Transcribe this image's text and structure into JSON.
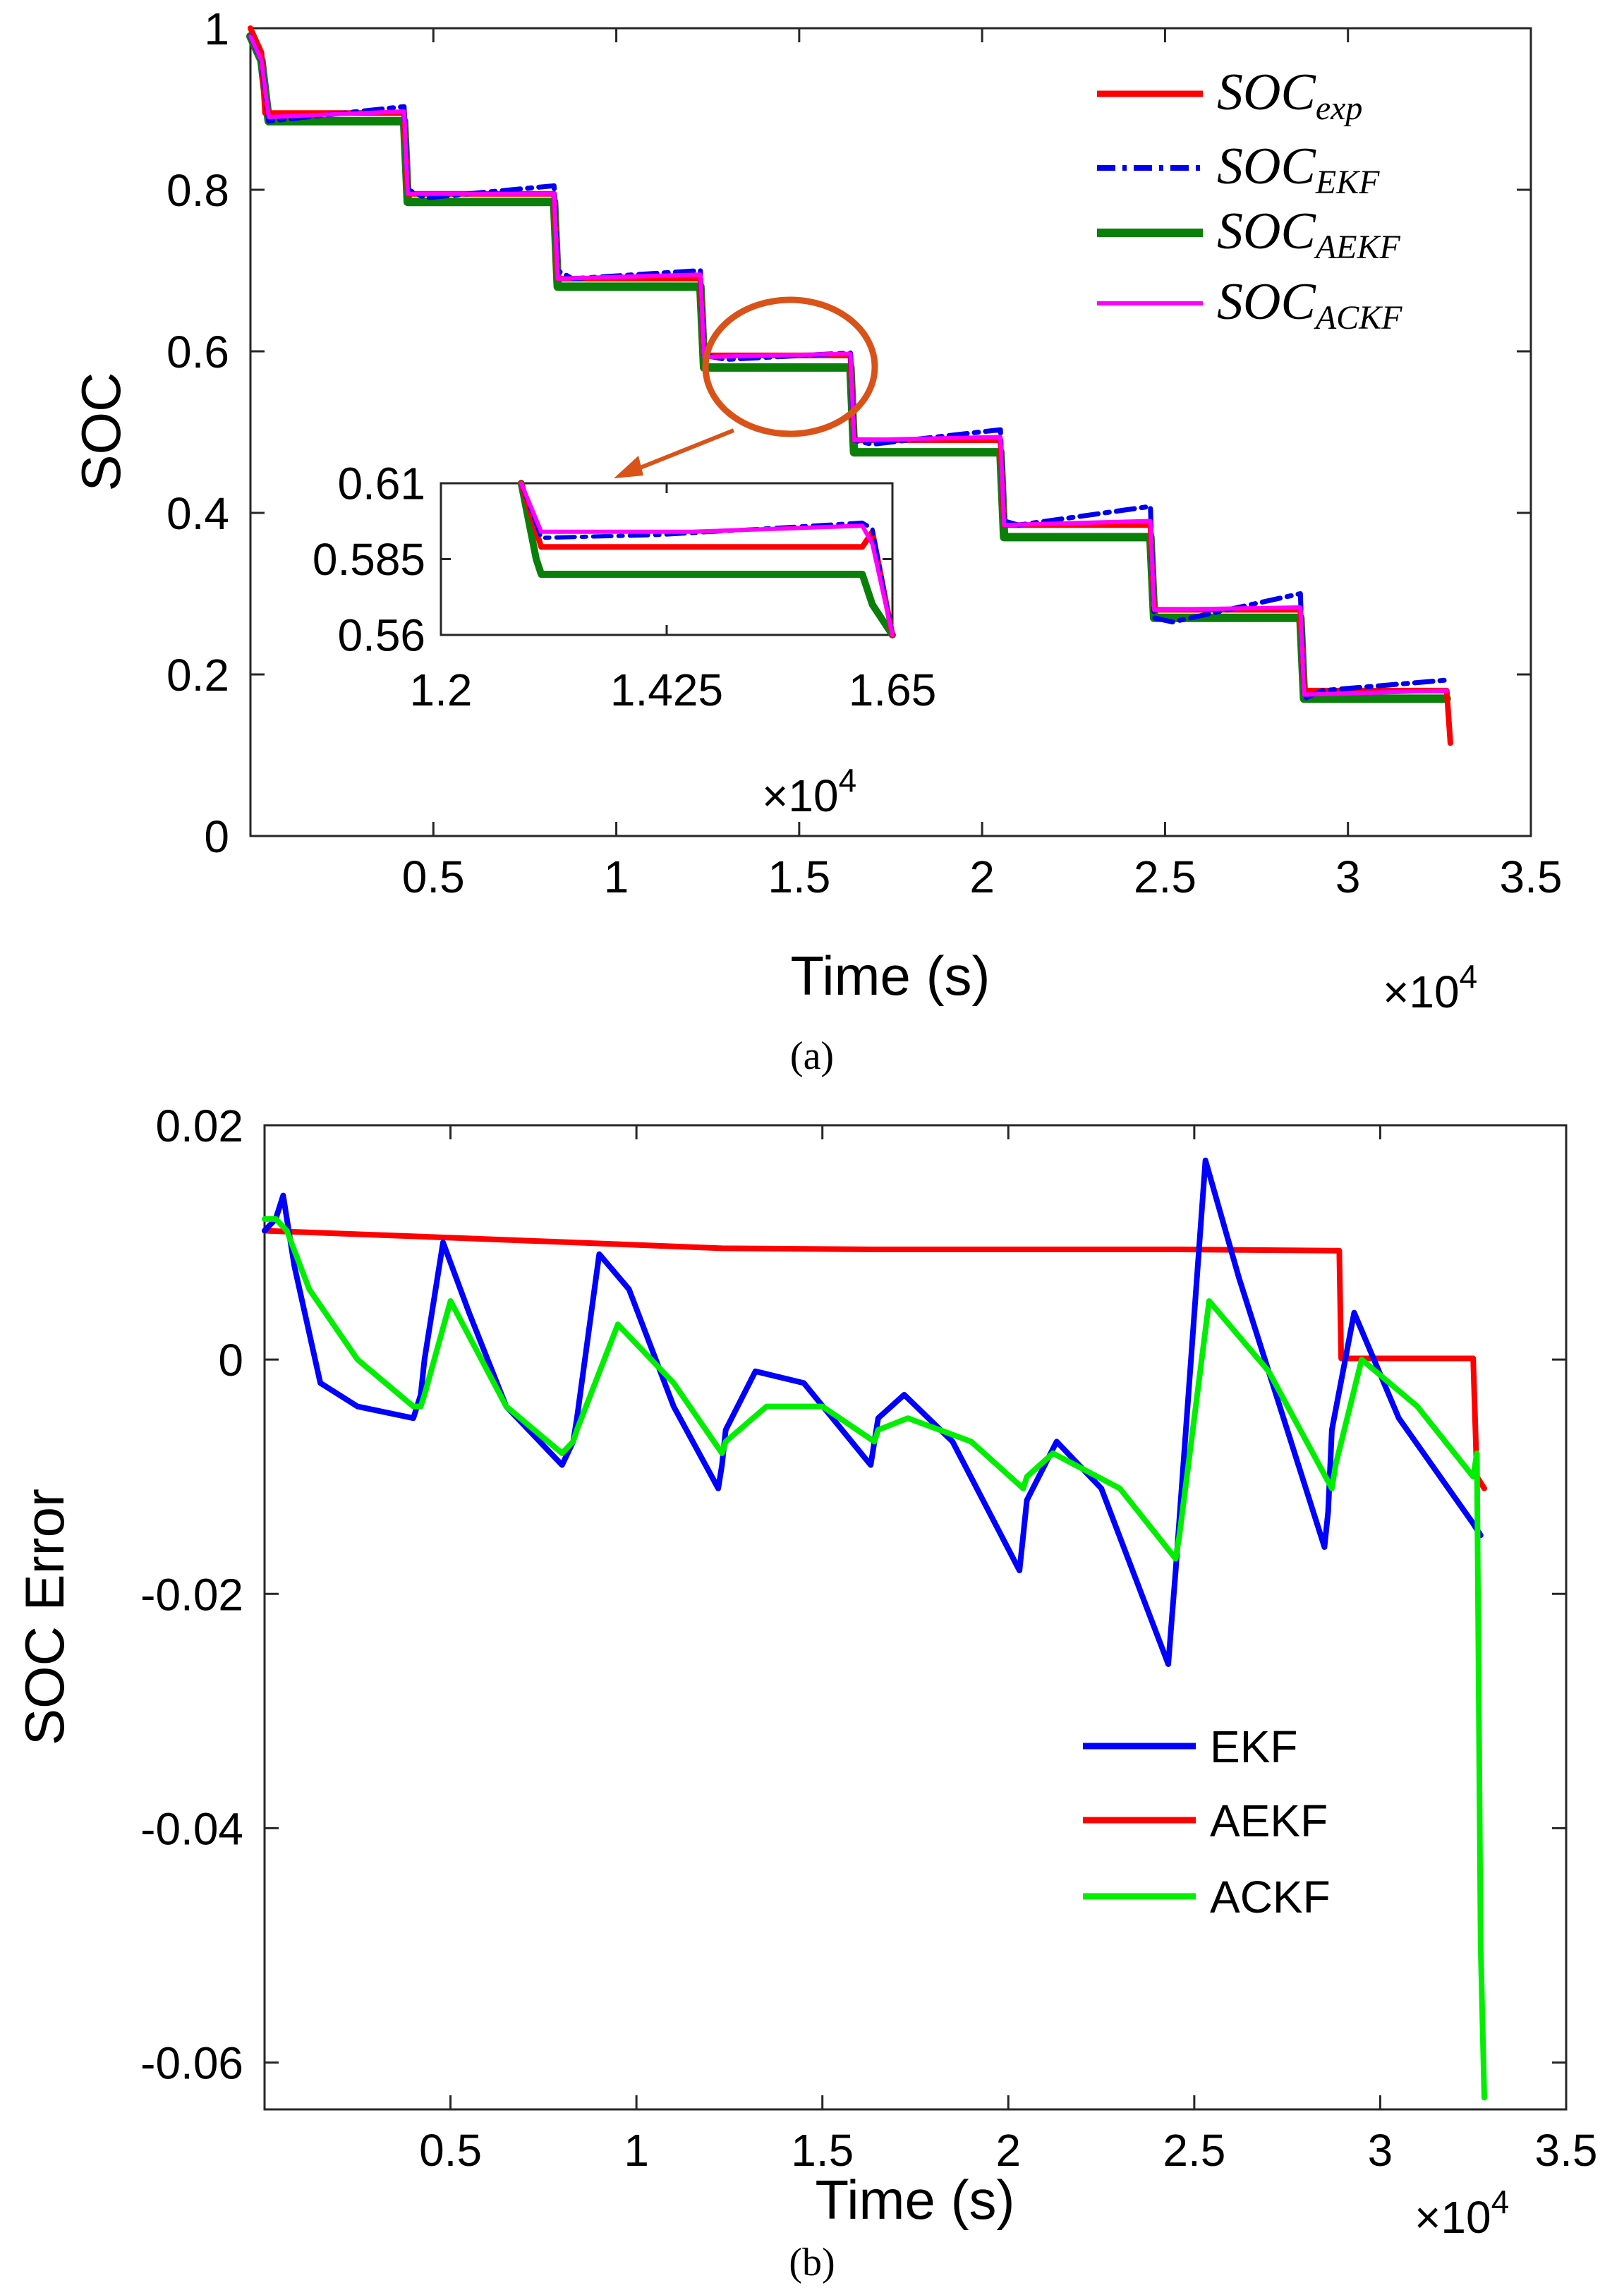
{
  "chart_data": [
    {
      "type": "line",
      "caption": "(a)",
      "xlabel": "Time (s)",
      "ylabel": "SOC",
      "x_multiplier": "×10",
      "x_multiplier_exp": "4",
      "xlim": [
        0,
        35000
      ],
      "ylim": [
        0,
        1
      ],
      "xticks": [
        5000,
        10000,
        15000,
        20000,
        25000,
        30000,
        35000
      ],
      "xtick_labels": [
        "0.5",
        "1",
        "1.5",
        "2",
        "2.5",
        "3",
        "3.5"
      ],
      "yticks": [
        0,
        0.2,
        0.4,
        0.6,
        0.8,
        1
      ],
      "ytick_labels": [
        "0",
        "0.2",
        "0.4",
        "0.6",
        "0.8",
        "1"
      ],
      "legend_position": "top-right",
      "legend": [
        {
          "base": "SOC",
          "sub": "exp"
        },
        {
          "base": "SOC",
          "sub": "EKF"
        },
        {
          "base": "SOC",
          "sub": "AEKF"
        },
        {
          "base": "SOC",
          "sub": "ACKF"
        }
      ],
      "series": [
        {
          "name": "SOC_exp",
          "color": "#ff0000",
          "style": "solid",
          "x": [
            0,
            300,
            400,
            4200,
            4300,
            8300,
            8400,
            12300,
            12400,
            16400,
            16500,
            20500,
            20600,
            24600,
            24700,
            28700,
            28800,
            32700,
            32800
          ],
          "y": [
            1.0,
            0.97,
            0.895,
            0.895,
            0.795,
            0.795,
            0.69,
            0.69,
            0.595,
            0.595,
            0.49,
            0.49,
            0.385,
            0.385,
            0.28,
            0.28,
            0.18,
            0.18,
            0.115
          ]
        },
        {
          "name": "SOC_EKF",
          "color": "#0000ee",
          "style": "dashdot",
          "x": [
            0,
            300,
            500,
            4200,
            4300,
            4800,
            8300,
            8400,
            8800,
            12300,
            12400,
            13000,
            16400,
            16500,
            17000,
            20500,
            20600,
            21000,
            24600,
            24700,
            25200,
            28700,
            28800,
            29300,
            32700
          ],
          "y": [
            0.99,
            0.96,
            0.885,
            0.903,
            0.8,
            0.79,
            0.805,
            0.7,
            0.69,
            0.7,
            0.595,
            0.59,
            0.598,
            0.49,
            0.485,
            0.503,
            0.39,
            0.385,
            0.408,
            0.27,
            0.265,
            0.3,
            0.17,
            0.18,
            0.193
          ]
        },
        {
          "name": "SOC_AEKF",
          "color": "#0a7f0a",
          "style": "solid-thick",
          "x": [
            0,
            300,
            500,
            4200,
            4300,
            8300,
            8400,
            12300,
            12400,
            16400,
            16500,
            20500,
            20600,
            24600,
            24700,
            28700,
            28800,
            32700
          ],
          "y": [
            0.99,
            0.96,
            0.885,
            0.885,
            0.785,
            0.785,
            0.68,
            0.68,
            0.58,
            0.58,
            0.475,
            0.475,
            0.37,
            0.37,
            0.27,
            0.27,
            0.17,
            0.17
          ]
        },
        {
          "name": "SOC_ACKF",
          "color": "#ff00ff",
          "style": "solid",
          "x": [
            0,
            300,
            500,
            4200,
            4300,
            8300,
            8400,
            12300,
            12400,
            16400,
            16500,
            20500,
            20600,
            24600,
            24700,
            28700,
            28800,
            32700
          ],
          "y": [
            0.99,
            0.96,
            0.89,
            0.897,
            0.795,
            0.795,
            0.69,
            0.695,
            0.593,
            0.597,
            0.49,
            0.494,
            0.385,
            0.39,
            0.28,
            0.283,
            0.175,
            0.18
          ]
        }
      ],
      "inset": {
        "xlim": [
          12000,
          16500
        ],
        "ylim": [
          0.56,
          0.61
        ],
        "xticks": [
          12000,
          14250,
          16500
        ],
        "xtick_labels": [
          "1.2",
          "1.425",
          "1.65"
        ],
        "yticks": [
          0.56,
          0.585,
          0.61
        ],
        "ytick_labels": [
          "0.56",
          "0.585",
          "0.61"
        ],
        "x_multiplier": "×10",
        "x_multiplier_exp": "4",
        "series": [
          {
            "name": "SOC_exp",
            "color": "#ff0000",
            "x": [
              12800,
              13000,
              16200,
              16300,
              16500
            ],
            "y": [
              0.61,
              0.589,
              0.589,
              0.594,
              0.56
            ]
          },
          {
            "name": "SOC_EKF",
            "color": "#0000ee",
            "style": "dashdot",
            "x": [
              12800,
              13000,
              14200,
              16200,
              16300,
              16500
            ],
            "y": [
              0.61,
              0.592,
              0.593,
              0.597,
              0.595,
              0.56
            ]
          },
          {
            "name": "SOC_AEKF",
            "color": "#0a7f0a",
            "x": [
              12800,
              12950,
              13000,
              16200,
              16300,
              16500
            ],
            "y": [
              0.61,
              0.585,
              0.58,
              0.58,
              0.57,
              0.56
            ]
          },
          {
            "name": "SOC_ACKF",
            "color": "#ff00ff",
            "x": [
              12800,
              13000,
              14500,
              16200,
              16300,
              16500
            ],
            "y": [
              0.61,
              0.594,
              0.594,
              0.596,
              0.59,
              0.56
            ]
          }
        ]
      },
      "annotation": "zoom ellipse around t≈1.5×10^4 s, SOC≈0.59, arrow to inset"
    },
    {
      "type": "line",
      "caption": "(b)",
      "xlabel": "Time (s)",
      "ylabel": "SOC Error",
      "x_multiplier": "×10",
      "x_multiplier_exp": "4",
      "xlim": [
        0,
        35000
      ],
      "ylim": [
        -0.064,
        0.02
      ],
      "xticks": [
        5000,
        10000,
        15000,
        20000,
        25000,
        30000,
        35000
      ],
      "xtick_labels": [
        "0.5",
        "1",
        "1.5",
        "2",
        "2.5",
        "3",
        "3.5"
      ],
      "yticks": [
        0.02,
        0,
        -0.02,
        -0.04,
        -0.06
      ],
      "ytick_labels": [
        "0.02",
        "0",
        "-0.02",
        "-0.04",
        "-0.06"
      ],
      "legend_position": "bottom-right",
      "legend": [
        "EKF",
        "AEKF",
        "ACKF"
      ],
      "series": [
        {
          "name": "EKF",
          "color": "#0000ff",
          "x": [
            0,
            300,
            500,
            800,
            1500,
            2500,
            4000,
            4200,
            4300,
            4800,
            5500,
            6500,
            8000,
            8300,
            8400,
            9000,
            9800,
            11000,
            12200,
            12300,
            12400,
            13200,
            14500,
            16300,
            16400,
            16500,
            17200,
            18500,
            20300,
            20400,
            20500,
            21300,
            22500,
            24300,
            24400,
            24500,
            25300,
            26200,
            28500,
            28600,
            28700,
            29300,
            30500,
            32500,
            32700
          ],
          "y": [
            0.011,
            0.012,
            0.014,
            0.008,
            -0.002,
            -0.004,
            -0.005,
            -0.003,
            0.0,
            0.01,
            0.004,
            -0.004,
            -0.009,
            -0.007,
            -0.005,
            0.009,
            0.006,
            -0.004,
            -0.011,
            -0.009,
            -0.006,
            -0.001,
            -0.002,
            -0.009,
            -0.007,
            -0.005,
            -0.003,
            -0.007,
            -0.018,
            -0.015,
            -0.012,
            -0.007,
            -0.011,
            -0.026,
            -0.022,
            -0.018,
            0.017,
            0.007,
            -0.016,
            -0.013,
            -0.006,
            0.004,
            -0.005,
            -0.014,
            -0.015
          ]
        },
        {
          "name": "AEKF",
          "color": "#ff0000",
          "x": [
            0,
            4200,
            8300,
            12300,
            16400,
            20500,
            24600,
            28700,
            28900,
            28950,
            32500,
            32600,
            32800
          ],
          "y": [
            0.011,
            0.0105,
            0.01,
            0.0095,
            0.0094,
            0.0094,
            0.0094,
            0.0093,
            0.0093,
            0.0001,
            0.0001,
            -0.01,
            -0.011
          ]
        },
        {
          "name": "ACKF",
          "color": "#00ee00",
          "x": [
            0,
            300,
            600,
            1200,
            2500,
            4000,
            4200,
            4300,
            5000,
            6500,
            8000,
            8300,
            8400,
            9500,
            11000,
            12300,
            12400,
            13500,
            15000,
            16400,
            16500,
            17300,
            19000,
            20400,
            20500,
            21200,
            23000,
            24500,
            24600,
            25400,
            27000,
            28700,
            28800,
            29500,
            31000,
            32500,
            32600,
            32700,
            32800
          ],
          "y": [
            0.012,
            0.012,
            0.011,
            0.006,
            0.0,
            -0.004,
            -0.004,
            -0.003,
            0.005,
            -0.004,
            -0.008,
            -0.007,
            -0.006,
            0.003,
            -0.002,
            -0.008,
            -0.007,
            -0.004,
            -0.004,
            -0.007,
            -0.006,
            -0.005,
            -0.007,
            -0.011,
            -0.01,
            -0.008,
            -0.011,
            -0.017,
            -0.015,
            0.005,
            -0.001,
            -0.011,
            -0.009,
            0.0,
            -0.004,
            -0.01,
            -0.008,
            -0.05,
            -0.063
          ]
        }
      ]
    }
  ]
}
